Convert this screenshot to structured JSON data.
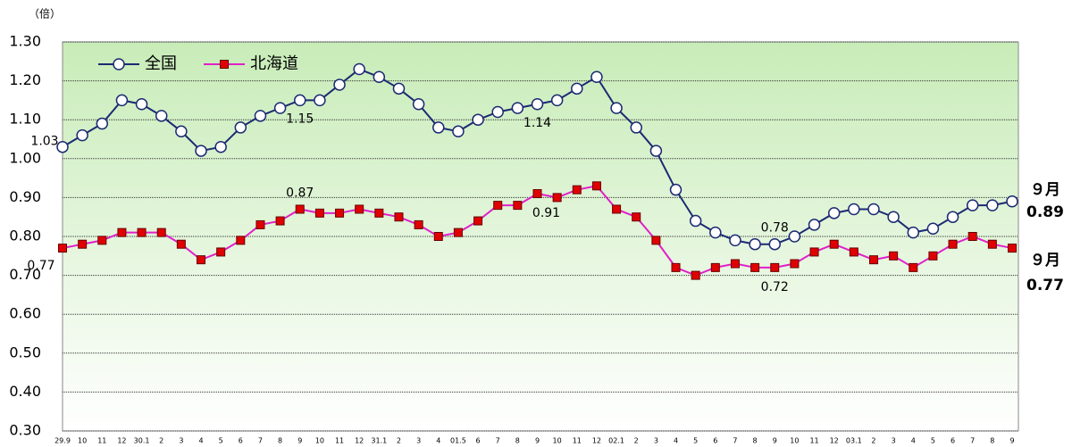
{
  "chart_data": {
    "type": "line",
    "y_unit": "（倍）",
    "categories": [
      "29.9",
      "10",
      "11",
      "12",
      "30.1",
      "2",
      "3",
      "4",
      "5",
      "6",
      "7",
      "8",
      "9",
      "10",
      "11",
      "12",
      "31.1",
      "2",
      "3",
      "4",
      "01.5",
      "6",
      "7",
      "8",
      "9",
      "10",
      "11",
      "12",
      "02.1",
      "2",
      "3",
      "4",
      "5",
      "6",
      "7",
      "8",
      "9",
      "10",
      "11",
      "12",
      "03.1",
      "2",
      "3",
      "4",
      "5",
      "6",
      "7",
      "8",
      "9"
    ],
    "series": [
      {
        "name": "全国",
        "color": "#1b2a72",
        "marker": "circle",
        "marker_color": "#ffffff",
        "values": [
          1.03,
          1.06,
          1.09,
          1.15,
          1.14,
          1.11,
          1.07,
          1.02,
          1.03,
          1.08,
          1.11,
          1.13,
          1.15,
          1.15,
          1.19,
          1.23,
          1.21,
          1.18,
          1.14,
          1.08,
          1.07,
          1.1,
          1.12,
          1.13,
          1.14,
          1.15,
          1.18,
          1.21,
          1.13,
          1.08,
          1.02,
          0.92,
          0.84,
          0.81,
          0.79,
          0.78,
          0.78,
          0.8,
          0.83,
          0.86,
          0.87,
          0.87,
          0.85,
          0.81,
          0.82,
          0.85,
          0.88,
          0.88,
          0.89
        ],
        "label_points": [
          0,
          12,
          24,
          36
        ],
        "end_label": "９月"
      },
      {
        "name": "北海道",
        "color": "#e020c8",
        "marker": "square",
        "marker_color": "#e00000",
        "values": [
          0.77,
          0.78,
          0.79,
          0.81,
          0.81,
          0.81,
          0.78,
          0.74,
          0.76,
          0.79,
          0.83,
          0.84,
          0.87,
          0.86,
          0.86,
          0.87,
          0.86,
          0.85,
          0.83,
          0.8,
          0.81,
          0.84,
          0.88,
          0.88,
          0.91,
          0.9,
          0.92,
          0.93,
          0.87,
          0.85,
          0.79,
          0.72,
          0.7,
          0.72,
          0.73,
          0.72,
          0.72,
          0.73,
          0.76,
          0.78,
          0.76,
          0.74,
          0.75,
          0.72,
          0.75,
          0.78,
          0.8,
          0.78,
          0.77
        ],
        "label_points": [
          0,
          12,
          24,
          36
        ],
        "end_label": "９月"
      }
    ],
    "ylim": [
      0.3,
      1.3
    ],
    "yticks": [
      {
        "value": 0.3,
        "label": "0.30"
      },
      {
        "value": 0.4,
        "label": "0.40"
      },
      {
        "value": 0.5,
        "label": "0.50"
      },
      {
        "value": 0.6,
        "label": "0.60"
      },
      {
        "value": 0.7,
        "label": "0.70"
      },
      {
        "value": 0.8,
        "label": "0.80"
      },
      {
        "value": 0.9,
        "label": "0.90"
      },
      {
        "value": 1.0,
        "label": "1.00"
      },
      {
        "value": 1.1,
        "label": "1.10"
      },
      {
        "value": 1.2,
        "label": "1.20"
      },
      {
        "value": 1.3,
        "label": "1.30"
      }
    ],
    "grid": true
  }
}
